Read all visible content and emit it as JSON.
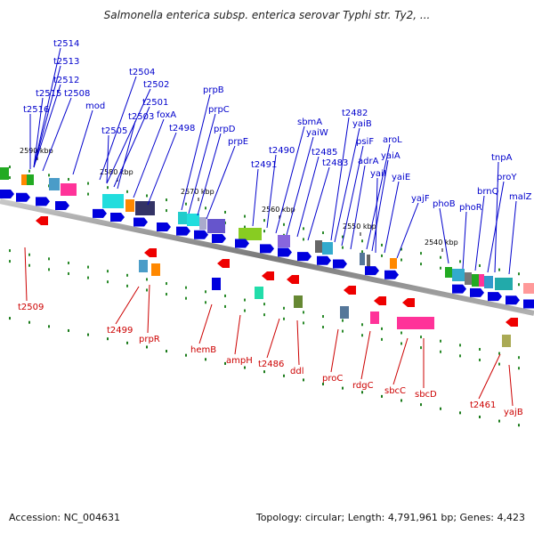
{
  "title": "Salmonella enterica subsp. enterica serovar Typhi str. Ty2, ...",
  "footer": {
    "accession": "Accession: NC_004631",
    "summary": "Topology: circular; Length: 4,791,961 bp; Genes: 4,423"
  },
  "colors": {
    "forward_label": "#0000cc",
    "reverse_label": "#cc0000",
    "backbone": "#8a8a8a"
  },
  "kbp_labels": [
    "2590 kbp",
    "2580 kbp",
    "2570 kbp",
    "2560 kbp",
    "2550 kbp",
    "2540 kbp"
  ],
  "forward_genes": [
    "t2514",
    "t2513",
    "t2512",
    "t2515",
    "t2508",
    "t2516",
    "mod",
    "t2504",
    "t2502",
    "t2501",
    "t2505",
    "t2503",
    "foxA",
    "t2498",
    "prpB",
    "prpC",
    "prpD",
    "prpE",
    "t2491",
    "t2490",
    "sbmA",
    "yaiW",
    "t2485",
    "t2483",
    "t2482",
    "yaiB",
    "psiF",
    "adrA",
    "aroL",
    "yaiA",
    "yaiI",
    "yaiE",
    "yajF",
    "phoB",
    "phoR",
    "brnQ",
    "proY",
    "tnpA",
    "malZ"
  ],
  "reverse_genes": [
    "t2509",
    "t2499",
    "prpR",
    "hemB",
    "ampH",
    "t2486",
    "ddl",
    "proC",
    "rdgC",
    "sbcC",
    "sbcD",
    "t2461",
    "yajB"
  ]
}
